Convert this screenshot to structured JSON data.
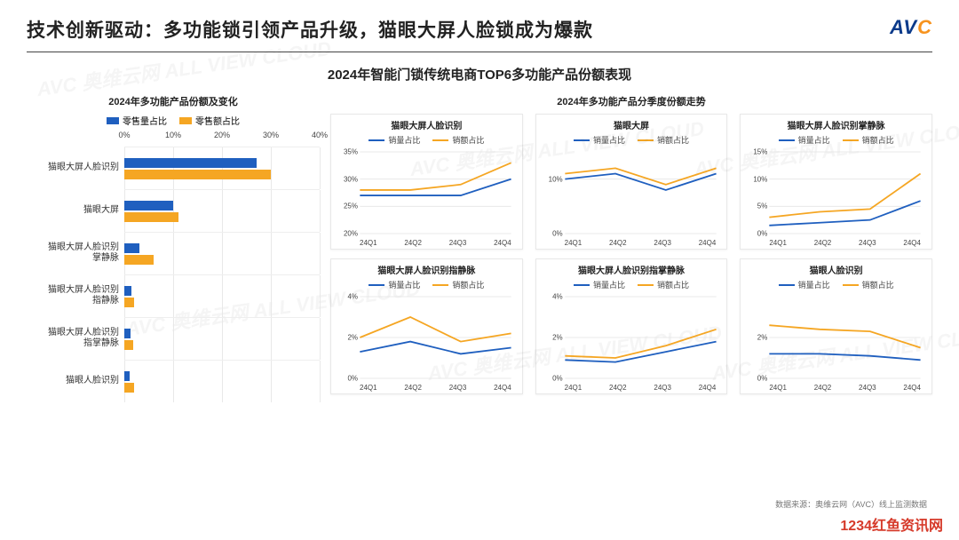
{
  "header": {
    "title": "技术创新驱动：多功能锁引领产品升级，猫眼大屏人脸锁成为爆款",
    "logo_prefix": "AV",
    "logo_accent": "C"
  },
  "main_title": "2024年智能门锁传统电商TOP6多功能产品份额表现",
  "colors": {
    "series_blue": "#1f5fbf",
    "series_orange": "#f5a623",
    "grid": "#e8e8e8",
    "axis_text": "#444444",
    "title_text": "#222222",
    "divider": "#444444",
    "mini_border": "#e8e8e8"
  },
  "bar_chart": {
    "subtitle": "2024年多功能产品份额及变化",
    "legend": {
      "a": "零售量占比",
      "b": "零售额占比"
    },
    "x_ticks": [
      "0%",
      "10%",
      "20%",
      "30%",
      "40%"
    ],
    "x_max": 40,
    "categories": [
      {
        "label": "猫眼大屏人脸识别",
        "a": 27,
        "b": 30
      },
      {
        "label": "猫眼大屏",
        "a": 10,
        "b": 11
      },
      {
        "label": "猫眼大屏人脸识别\n掌静脉",
        "a": 3,
        "b": 6
      },
      {
        "label": "猫眼大屏人脸识别\n指静脉",
        "a": 1.5,
        "b": 2
      },
      {
        "label": "猫眼大屏人脸识别\n指掌静脉",
        "a": 1.2,
        "b": 1.8
      },
      {
        "label": "猫眼人脸识别",
        "a": 1,
        "b": 2
      }
    ]
  },
  "mini_section": {
    "subtitle": "2024年多功能产品分季度份额走势",
    "legend": {
      "a": "销量占比",
      "b": "销额占比"
    },
    "x_labels": [
      "24Q1",
      "24Q2",
      "24Q3",
      "24Q4"
    ],
    "charts": [
      {
        "title": "猫眼大屏人脸识别",
        "y_ticks": [
          20,
          25,
          30,
          35
        ],
        "y_min": 20,
        "y_max": 35,
        "a": [
          27,
          27,
          27,
          30
        ],
        "b": [
          28,
          28,
          29,
          33
        ]
      },
      {
        "title": "猫眼大屏",
        "y_ticks": [
          0,
          10
        ],
        "y_min": 0,
        "y_max": 15,
        "a": [
          10,
          11,
          8,
          11
        ],
        "b": [
          11,
          12,
          9,
          12
        ]
      },
      {
        "title": "猫眼大屏人脸识别掌静脉",
        "y_ticks": [
          0,
          5,
          10,
          15
        ],
        "y_min": 0,
        "y_max": 15,
        "a": [
          1.5,
          2,
          2.5,
          6
        ],
        "b": [
          3,
          4,
          4.5,
          11
        ]
      },
      {
        "title": "猫眼大屏人脸识别指静脉",
        "y_ticks": [
          0,
          2,
          4
        ],
        "y_min": 0,
        "y_max": 4,
        "a": [
          1.3,
          1.8,
          1.2,
          1.5
        ],
        "b": [
          2.0,
          3.0,
          1.8,
          2.2
        ]
      },
      {
        "title": "猫眼大屏人脸识别指掌静脉",
        "y_ticks": [
          0,
          2,
          4
        ],
        "y_min": 0,
        "y_max": 4,
        "a": [
          0.9,
          0.8,
          1.3,
          1.8
        ],
        "b": [
          1.1,
          1.0,
          1.6,
          2.4
        ]
      },
      {
        "title": "猫眼人脸识别",
        "y_ticks": [
          0,
          2
        ],
        "y_min": 0,
        "y_max": 4,
        "a": [
          1.2,
          1.2,
          1.1,
          0.9
        ],
        "b": [
          2.6,
          2.4,
          2.3,
          1.5
        ]
      }
    ]
  },
  "source": "数据来源：奥维云网（AVC）线上监测数据",
  "footer_brand": "1234红鱼资讯网",
  "watermark": "AVC 奥维云网  ALL VIEW CLOUD"
}
